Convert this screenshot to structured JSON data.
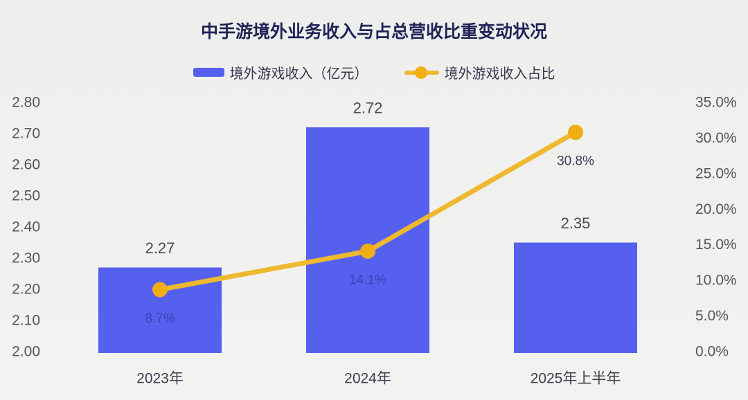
{
  "title": "中手游境外业务收入与占总营收比重变动状况",
  "colors": {
    "background": "#f0f0ee",
    "title": "#1f2357",
    "bar": "#5560ee",
    "line": "#eeb82f",
    "dot": "#f1ae12",
    "axis_text": "#54555e",
    "category_text": "#3c3f4e",
    "legend_text": "#33374f",
    "value_label_text": "#4a4b52"
  },
  "legend": {
    "items": [
      {
        "label": "境外游戏收入（亿元）",
        "marker": "bar-swatch"
      },
      {
        "label": "境外游戏收入占比",
        "marker": "line-dot-swatch"
      }
    ]
  },
  "chart_data": {
    "type": "bar+line combo",
    "title": "中手游境外业务收入与占总营收比重变动状况",
    "categories": [
      "2023年",
      "2024年",
      "2025年上半年"
    ],
    "series": [
      {
        "name": "境外游戏收入（亿元）",
        "type": "bar",
        "axis": "left",
        "values": [
          2.27,
          2.72,
          2.35
        ],
        "data_labels": [
          "2.27",
          "2.72",
          "2.35"
        ],
        "color": "#5560ee"
      },
      {
        "name": "境外游戏收入占比",
        "type": "line",
        "axis": "right",
        "values": [
          8.7,
          14.1,
          30.8
        ],
        "data_labels": [
          "8.7%",
          "14.1%",
          "30.8%"
        ],
        "label_colors": [
          "#3d42b3",
          "#3d42b3",
          "#3a3e56"
        ],
        "color": "#eeb82f"
      }
    ],
    "left_axis": {
      "min": 2.0,
      "max": 2.8,
      "step": 0.1,
      "tick_labels": [
        "2.80",
        "2.70",
        "2.60",
        "2.50",
        "2.40",
        "2.30",
        "2.20",
        "2.10",
        "2.00"
      ]
    },
    "right_axis": {
      "min": 0,
      "max": 35,
      "step": 5,
      "tick_labels": [
        "35.0%",
        "30.0%",
        "25.0%",
        "20.0%",
        "15.0%",
        "10.0%",
        "5.0%",
        "0.0%"
      ]
    },
    "grid": false,
    "legend_position": "top"
  }
}
